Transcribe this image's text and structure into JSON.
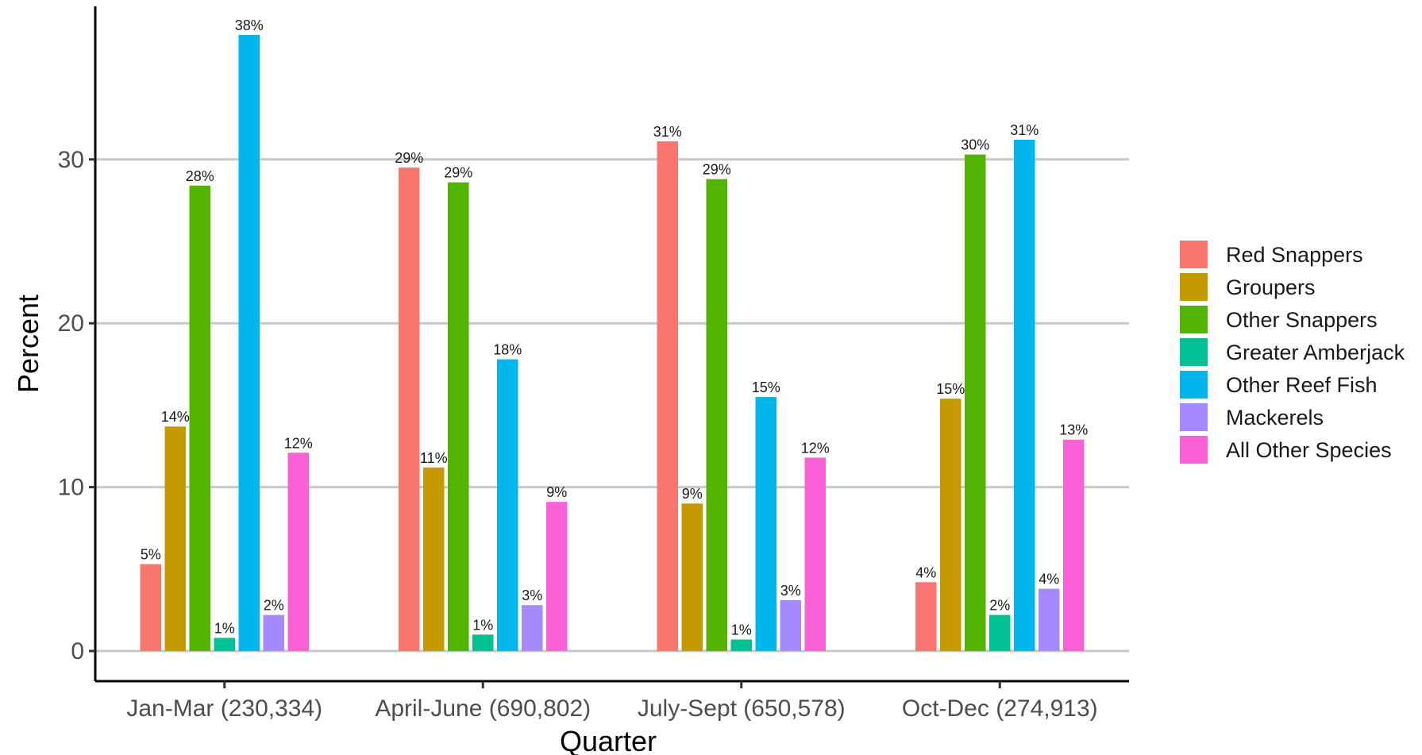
{
  "chart_data": {
    "type": "bar",
    "xlabel": "Quarter",
    "ylabel": "Percent",
    "ylim": [
      0,
      38.9
    ],
    "yticks": [
      0,
      10,
      20,
      30
    ],
    "grid": "horizontal major",
    "legend_position": "right",
    "categories": [
      "Jan-Mar (230,334)",
      "April-June (690,802)",
      "July-Sept (650,578)",
      "Oct-Dec (274,913)"
    ],
    "series": [
      {
        "name": "Red Snappers",
        "color": "#F8766D",
        "values": [
          5.3,
          29.5,
          31.1,
          4.2
        ],
        "labels": [
          "5%",
          "29%",
          "31%",
          "4%"
        ]
      },
      {
        "name": "Groupers",
        "color": "#C49A00",
        "values": [
          13.7,
          11.2,
          9.0,
          15.4
        ],
        "labels": [
          "14%",
          "11%",
          "9%",
          "15%"
        ]
      },
      {
        "name": "Other Snappers",
        "color": "#53B400",
        "values": [
          28.4,
          28.6,
          28.8,
          30.3
        ],
        "labels": [
          "28%",
          "29%",
          "29%",
          "30%"
        ]
      },
      {
        "name": "Greater Amberjack",
        "color": "#00C094",
        "values": [
          0.8,
          1.0,
          0.7,
          2.2
        ],
        "labels": [
          "1%",
          "1%",
          "1%",
          "2%"
        ]
      },
      {
        "name": "Other Reef Fish",
        "color": "#00B6EB",
        "values": [
          37.6,
          17.8,
          15.5,
          31.2
        ],
        "labels": [
          "38%",
          "18%",
          "15%",
          "31%"
        ]
      },
      {
        "name": "Mackerels",
        "color": "#A58AFF",
        "values": [
          2.2,
          2.8,
          3.1,
          3.8
        ],
        "labels": [
          "2%",
          "3%",
          "3%",
          "4%"
        ]
      },
      {
        "name": "All Other Species",
        "color": "#FB61D7",
        "values": [
          12.1,
          9.1,
          11.8,
          12.9
        ],
        "labels": [
          "12%",
          "9%",
          "12%",
          "13%"
        ]
      }
    ]
  }
}
